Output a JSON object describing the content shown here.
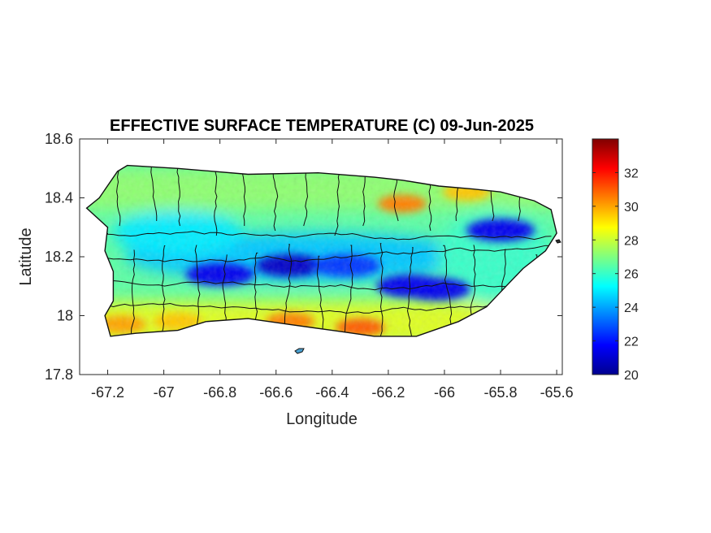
{
  "chart_data": {
    "type": "heatmap",
    "title": "EFFECTIVE SURFACE TEMPERATURE (C) 09-Jun-2025",
    "xlabel": "Longitude",
    "ylabel": "Latitude",
    "xlim": [
      -67.3,
      -65.58
    ],
    "ylim": [
      17.8,
      18.6
    ],
    "x_ticks": [
      -67.2,
      -67,
      -66.8,
      -66.6,
      -66.4,
      -66.2,
      -66,
      -65.8,
      -65.6
    ],
    "x_tick_labels": [
      "-67.2",
      "-67",
      "-66.8",
      "-66.6",
      "-66.4",
      "-66.2",
      "-66",
      "-65.8",
      "-65.6"
    ],
    "y_ticks": [
      17.8,
      18,
      18.2,
      18.4,
      18.6
    ],
    "y_tick_labels": [
      "17.8",
      "18",
      "18.2",
      "18.4",
      "18.6"
    ],
    "colorbar": {
      "colormap": "jet",
      "range": [
        20,
        34
      ],
      "ticks": [
        20,
        22,
        24,
        26,
        28,
        30,
        32
      ],
      "tick_labels": [
        "20",
        "22",
        "24",
        "26",
        "28",
        "30",
        "32"
      ]
    },
    "grid": false,
    "island_outline": [
      [
        -67.275,
        18.365
      ],
      [
        -67.23,
        18.4
      ],
      [
        -67.165,
        18.49
      ],
      [
        -67.13,
        18.51
      ],
      [
        -66.95,
        18.5
      ],
      [
        -66.7,
        18.48
      ],
      [
        -66.45,
        18.485
      ],
      [
        -66.25,
        18.47
      ],
      [
        -66.15,
        18.46
      ],
      [
        -66.02,
        18.44
      ],
      [
        -65.9,
        18.43
      ],
      [
        -65.8,
        18.42
      ],
      [
        -65.68,
        18.39
      ],
      [
        -65.62,
        18.36
      ],
      [
        -65.6,
        18.28
      ],
      [
        -65.64,
        18.22
      ],
      [
        -65.72,
        18.16
      ],
      [
        -65.78,
        18.1
      ],
      [
        -65.85,
        18.03
      ],
      [
        -65.95,
        17.98
      ],
      [
        -66.1,
        17.93
      ],
      [
        -66.25,
        17.93
      ],
      [
        -66.4,
        17.95
      ],
      [
        -66.55,
        17.97
      ],
      [
        -66.7,
        17.99
      ],
      [
        -66.85,
        17.98
      ],
      [
        -66.95,
        17.95
      ],
      [
        -67.1,
        17.94
      ],
      [
        -67.19,
        17.93
      ],
      [
        -67.21,
        18.0
      ],
      [
        -67.18,
        18.05
      ],
      [
        -67.18,
        18.15
      ],
      [
        -67.21,
        18.22
      ],
      [
        -67.2,
        18.3
      ]
    ],
    "cold_zones": [
      {
        "lon": -66.8,
        "lat": 18.14,
        "temp": 21.5
      },
      {
        "lon": -66.55,
        "lat": 18.17,
        "temp": 21.0
      },
      {
        "lon": -66.35,
        "lat": 18.17,
        "temp": 22.5
      },
      {
        "lon": -66.12,
        "lat": 18.1,
        "temp": 21.5
      },
      {
        "lon": -66.03,
        "lat": 18.09,
        "temp": 21.5
      },
      {
        "lon": -65.8,
        "lat": 18.29,
        "temp": 21.5
      }
    ],
    "warm_zones": [
      {
        "lon": -66.15,
        "lat": 18.38,
        "temp": 30.5
      },
      {
        "lon": -65.92,
        "lat": 18.42,
        "temp": 29.5
      },
      {
        "lon": -66.55,
        "lat": 17.98,
        "temp": 30.5
      },
      {
        "lon": -66.3,
        "lat": 17.96,
        "temp": 31.0
      },
      {
        "lon": -67.15,
        "lat": 17.97,
        "temp": 30.0
      },
      {
        "lon": -66.95,
        "lat": 17.98,
        "temp": 29.5
      }
    ]
  }
}
